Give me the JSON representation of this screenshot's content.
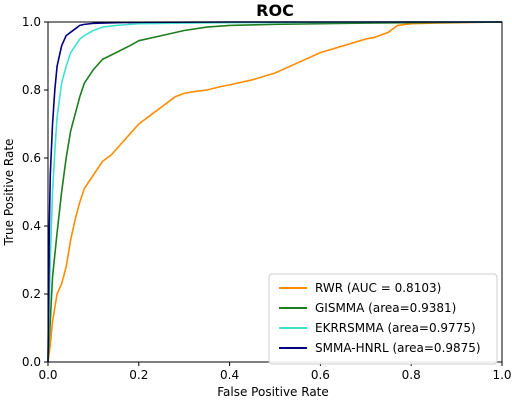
{
  "chart_data": {
    "type": "line",
    "title": "ROC",
    "xlabel": "False Positive Rate",
    "ylabel": "True Positive Rate",
    "xlim": [
      0.0,
      1.0
    ],
    "ylim": [
      0.0,
      1.0
    ],
    "xticks": [
      "0.0",
      "0.2",
      "0.4",
      "0.6",
      "0.8",
      "1.0"
    ],
    "yticks": [
      "0.0",
      "0.2",
      "0.4",
      "0.6",
      "0.8",
      "1.0"
    ],
    "grid": false,
    "legend_position": "lower-right",
    "series": [
      {
        "name": "RWR (AUC = 0.8103)",
        "color": "#ff8c00",
        "x": [
          0,
          0.005,
          0.01,
          0.02,
          0.03,
          0.04,
          0.05,
          0.06,
          0.07,
          0.08,
          0.1,
          0.12,
          0.14,
          0.16,
          0.18,
          0.2,
          0.22,
          0.25,
          0.28,
          0.3,
          0.32,
          0.35,
          0.38,
          0.4,
          0.45,
          0.5,
          0.55,
          0.6,
          0.65,
          0.7,
          0.72,
          0.75,
          0.77,
          0.8,
          0.85,
          0.9,
          0.95,
          1.0
        ],
        "y": [
          0,
          0.05,
          0.12,
          0.2,
          0.23,
          0.28,
          0.36,
          0.42,
          0.47,
          0.51,
          0.55,
          0.59,
          0.61,
          0.64,
          0.67,
          0.7,
          0.72,
          0.75,
          0.78,
          0.79,
          0.795,
          0.8,
          0.81,
          0.815,
          0.83,
          0.85,
          0.88,
          0.91,
          0.93,
          0.95,
          0.955,
          0.97,
          0.99,
          0.995,
          0.997,
          0.998,
          0.999,
          1.0
        ]
      },
      {
        "name": "GISMMA (area=0.9381)",
        "color": "#1e7d1e",
        "x": [
          0,
          0.005,
          0.01,
          0.02,
          0.03,
          0.04,
          0.05,
          0.06,
          0.07,
          0.08,
          0.1,
          0.12,
          0.15,
          0.18,
          0.2,
          0.25,
          0.3,
          0.35,
          0.4,
          0.5,
          0.6,
          0.7,
          0.8,
          0.9,
          1.0
        ],
        "y": [
          0,
          0.12,
          0.25,
          0.38,
          0.5,
          0.6,
          0.68,
          0.73,
          0.78,
          0.82,
          0.86,
          0.89,
          0.91,
          0.93,
          0.945,
          0.96,
          0.975,
          0.985,
          0.99,
          0.993,
          0.995,
          0.997,
          0.998,
          0.999,
          1.0
        ]
      },
      {
        "name": "EKRRSMMA (area=0.9775)",
        "color": "#40e0d0",
        "x": [
          0,
          0.005,
          0.01,
          0.015,
          0.02,
          0.03,
          0.04,
          0.05,
          0.06,
          0.07,
          0.08,
          0.1,
          0.12,
          0.15,
          0.2,
          0.3,
          0.4,
          0.6,
          0.8,
          1.0
        ],
        "y": [
          0,
          0.3,
          0.5,
          0.62,
          0.72,
          0.82,
          0.87,
          0.91,
          0.93,
          0.95,
          0.96,
          0.975,
          0.985,
          0.99,
          0.995,
          0.997,
          0.998,
          0.999,
          1.0,
          1.0
        ]
      },
      {
        "name": "SMMA-HNRL (area=0.9875)",
        "color": "#000080",
        "x": [
          0,
          0.003,
          0.005,
          0.01,
          0.015,
          0.02,
          0.03,
          0.04,
          0.05,
          0.06,
          0.07,
          0.08,
          0.1,
          0.12,
          0.15,
          0.2,
          0.4,
          0.6,
          0.8,
          1.0
        ],
        "y": [
          0,
          0.4,
          0.55,
          0.7,
          0.8,
          0.87,
          0.93,
          0.96,
          0.97,
          0.98,
          0.99,
          0.993,
          0.996,
          0.997,
          0.998,
          0.999,
          1.0,
          1.0,
          1.0,
          1.0
        ]
      }
    ]
  }
}
